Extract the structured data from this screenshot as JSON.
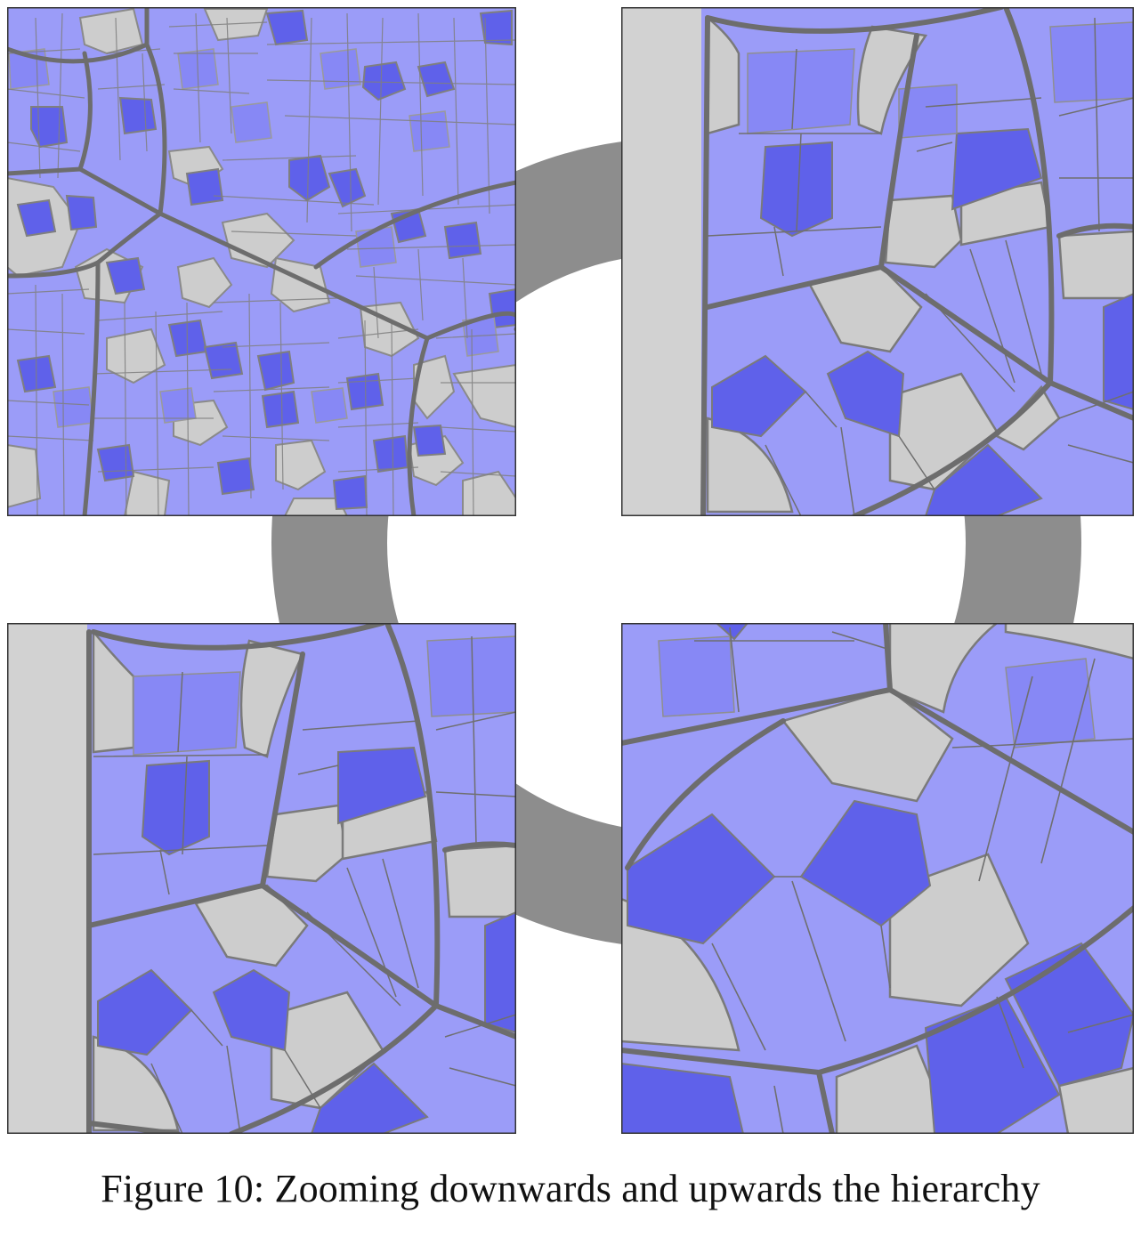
{
  "figure": {
    "caption": "Figure 10: Zooming downwards and upwards the hierarchy",
    "panels": [
      {
        "id": "overview",
        "description": "hierarchical Voronoi treemap, top level"
      },
      {
        "id": "zoom-in-1",
        "description": "zoomed region of the treemap"
      },
      {
        "id": "zoom-in-2",
        "description": "same region, different crop"
      },
      {
        "id": "zoom-in-3",
        "description": "deeper zoom of the treemap"
      }
    ],
    "colors": {
      "cell_light": "#9b9cf8",
      "cell_mid": "#8788f5",
      "cell_dark": "#5f61ea",
      "cell_grey": "#cdcdcd",
      "border_major": "#6d6d6d",
      "border_minor": "#a4a4a4",
      "ring": "#8d8d8d"
    }
  }
}
